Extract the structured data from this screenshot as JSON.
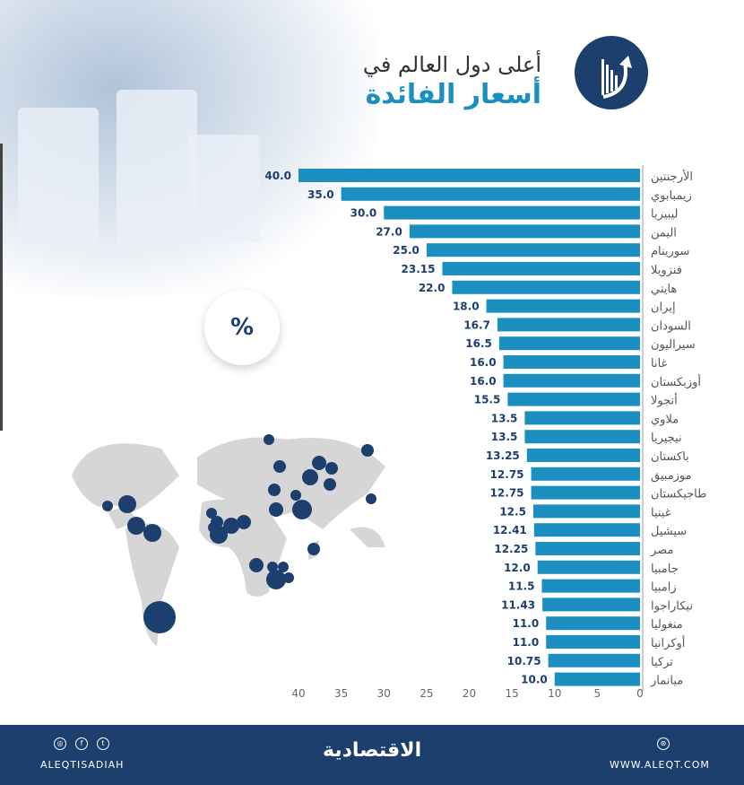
{
  "header": {
    "title_line1": "أعلى دول العالم في",
    "title_line2": "أسعار الفائدة",
    "badge": "%"
  },
  "colors": {
    "bar": "#1a8fc0",
    "navy": "#1c3f6e",
    "map": "#d6d6d6"
  },
  "chart_data": {
    "type": "bar",
    "orientation": "horizontal",
    "title": "أعلى دول العالم في أسعار الفائدة",
    "xlim": [
      0,
      40
    ],
    "ticks": [
      0,
      5,
      10,
      15,
      20,
      25,
      30,
      35,
      40
    ],
    "categories": [
      "الأرجنتين",
      "زيمبابوي",
      "ليبيريا",
      "اليمن",
      "سورينام",
      "فنزويلا",
      "هايتي",
      "إيران",
      "السودان",
      "سيراليون",
      "غانا",
      "أوزبكستان",
      "أنجولا",
      "ملاوي",
      "نيجيريا",
      "باكستان",
      "موزمبيق",
      "طاجيكستان",
      "غينيا",
      "سيشيل",
      "مصر",
      "جامبيا",
      "زامبيا",
      "نيكاراجوا",
      "منغوليا",
      "أوكرانيا",
      "تركيا",
      "ميانمار"
    ],
    "values": [
      40.0,
      35.0,
      30.0,
      27.0,
      25.0,
      23.15,
      22.0,
      18.0,
      16.7,
      16.5,
      16.0,
      16.0,
      15.5,
      13.5,
      13.5,
      13.25,
      12.75,
      12.75,
      12.5,
      12.41,
      12.25,
      12.0,
      11.5,
      11.43,
      11.0,
      11.0,
      10.75,
      10.0
    ],
    "labels": [
      "40.0",
      "35.0",
      "30.0",
      "27.0",
      "25.0",
      "23.15",
      "22.0",
      "18.0",
      "16.7",
      "16.5",
      "16.0",
      "16.0",
      "15.5",
      "13.5",
      "13.5",
      "13.25",
      "12.75",
      "12.75",
      "12.5",
      "12.41",
      "12.25",
      "12.0",
      "11.5",
      "11.43",
      "11.0",
      "11.0",
      "10.75",
      "10.0"
    ]
  },
  "footer": {
    "handle": "ALEQTISADIAH",
    "brand": "الاقتصادية",
    "website": "WWW.ALEQT.COM",
    "social_icons": [
      "instagram-icon",
      "facebook-icon",
      "twitter-icon"
    ],
    "web_icon": "globe-icon"
  }
}
